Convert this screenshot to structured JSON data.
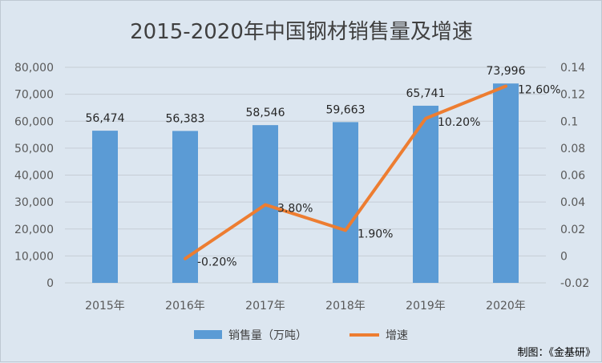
{
  "chart_data": {
    "type": "bar",
    "title": "2015-2020年中国钢材销售量及增速",
    "categories": [
      "2015年",
      "2016年",
      "2017年",
      "2018年",
      "2019年",
      "2020年"
    ],
    "series": [
      {
        "name": "销售量（万吨）",
        "type": "bar",
        "axis": "left",
        "color": "#5b9bd5",
        "values": [
          56474,
          56383,
          58546,
          59663,
          65741,
          73996
        ],
        "labels": [
          "56,474",
          "56,383",
          "58,546",
          "59,663",
          "65,741",
          "73,996"
        ]
      },
      {
        "name": "增速",
        "type": "line",
        "axis": "right",
        "color": "#ed7d31",
        "values": [
          null,
          -0.002,
          0.038,
          0.019,
          0.102,
          0.126
        ],
        "labels": [
          "",
          "-0.20%",
          "3.80%",
          "1.90%",
          "10.20%",
          "12.60%"
        ]
      }
    ],
    "y_left": {
      "ylim": [
        0,
        80000
      ],
      "ticks": [
        0,
        10000,
        20000,
        30000,
        40000,
        50000,
        60000,
        70000,
        80000
      ],
      "tick_labels": [
        "0",
        "10,000",
        "20,000",
        "30,000",
        "40,000",
        "50,000",
        "60,000",
        "70,000",
        "80,000"
      ]
    },
    "y_right": {
      "ylim": [
        -0.02,
        0.14
      ],
      "ticks": [
        -0.02,
        0,
        0.02,
        0.04,
        0.06,
        0.08,
        0.1,
        0.12,
        0.14
      ],
      "tick_labels": [
        "-0.02",
        "0",
        "0.02",
        "0.04",
        "0.06",
        "0.08",
        "0.1",
        "0.12",
        "0.14"
      ]
    },
    "grid": true,
    "legend": "bottom"
  },
  "credit": "制图：《金基研》"
}
